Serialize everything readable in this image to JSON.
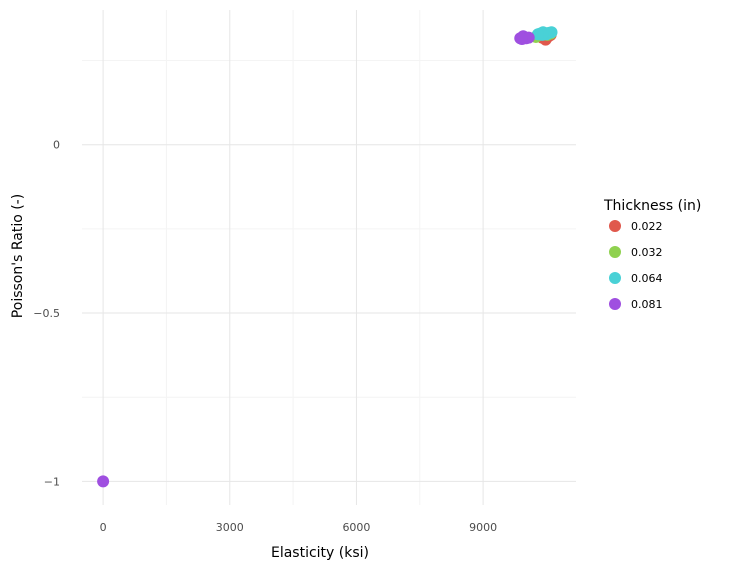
{
  "chart_data": {
    "type": "scatter",
    "xlabel": "Elasticity (ksi)",
    "ylabel": "Poisson's Ratio (-)",
    "xlim": [
      -500,
      11200
    ],
    "ylim": [
      -1.07,
      0.4
    ],
    "x_ticks": [
      0,
      3000,
      6000,
      9000
    ],
    "x_tick_labels": [
      "0",
      "3000",
      "6000",
      "9000"
    ],
    "y_ticks": [
      0,
      -0.5,
      -1
    ],
    "y_tick_labels": [
      "0",
      "−0.5",
      "−1"
    ],
    "grid": true,
    "legend_position": "right",
    "legend_title": "Thickness (in)",
    "series": [
      {
        "name": "0.022",
        "color": "#e0584c",
        "points": [
          [
            10400,
            0.318
          ],
          [
            10480,
            0.312
          ],
          [
            10550,
            0.322
          ],
          [
            10600,
            0.326
          ],
          [
            10450,
            0.33
          ],
          [
            10350,
            0.322
          ]
        ]
      },
      {
        "name": "0.032",
        "color": "#8fd14f",
        "points": [
          [
            10300,
            0.325
          ],
          [
            10380,
            0.328
          ],
          [
            10450,
            0.332
          ],
          [
            10520,
            0.326
          ],
          [
            10600,
            0.33
          ],
          [
            10250,
            0.32
          ]
        ]
      },
      {
        "name": "0.064",
        "color": "#49d1d6",
        "points": [
          [
            10350,
            0.33
          ],
          [
            10420,
            0.334
          ],
          [
            10500,
            0.328
          ],
          [
            10560,
            0.332
          ],
          [
            10620,
            0.334
          ],
          [
            10400,
            0.326
          ],
          [
            10300,
            0.328
          ]
        ]
      },
      {
        "name": "0.081",
        "color": "#9f4fe0",
        "points": [
          [
            9880,
            0.316
          ],
          [
            9950,
            0.322
          ],
          [
            10020,
            0.316
          ],
          [
            10080,
            0.318
          ],
          [
            9920,
            0.314
          ],
          [
            0,
            -1.0
          ]
        ]
      }
    ]
  }
}
